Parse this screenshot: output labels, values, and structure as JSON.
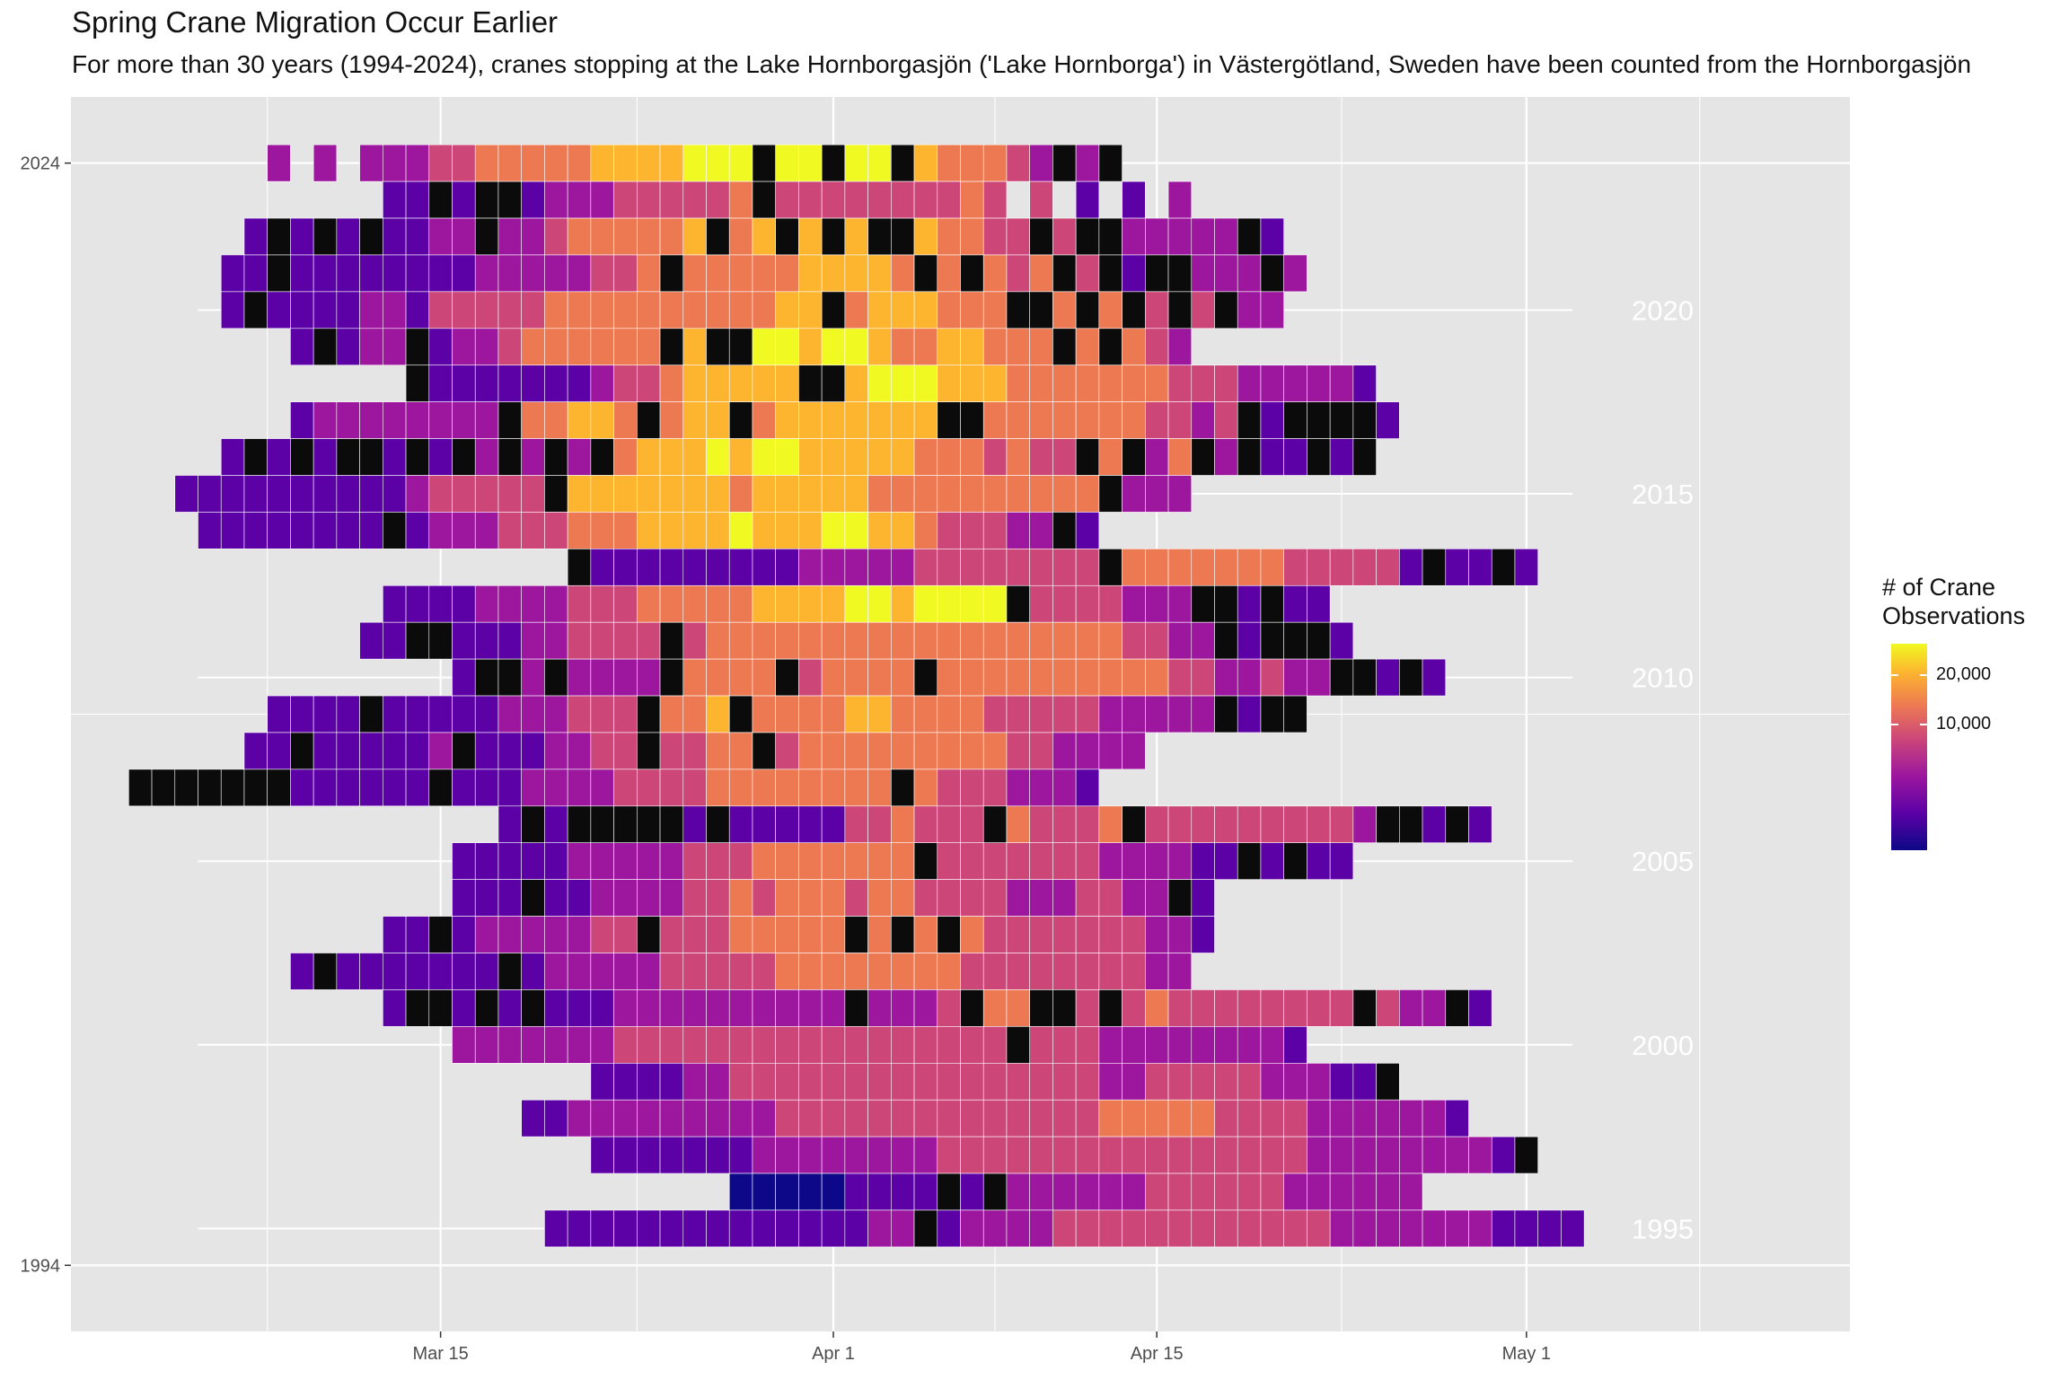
{
  "chart_data": {
    "type": "heatmap",
    "title": "Spring Crane Migration Occur Earlier",
    "subtitle": "For more than 30 years (1994-2024), cranes stopping at the Lake Hornborgasjön ('Lake Hornborga') in Västergötland, Sweden have been counted from the Hornborgasjön",
    "xlabel": "",
    "ylabel": "",
    "x_axis": {
      "type": "date",
      "ticks": [
        "Mar 15",
        "Apr 1",
        "Apr 15",
        "May 1"
      ],
      "tick_days": [
        74,
        91,
        105,
        121
      ],
      "range_days": [
        58,
        135
      ]
    },
    "y_axis": {
      "ticks": [
        "1994",
        "2024"
      ],
      "range": [
        1992.2,
        2025.8
      ]
    },
    "year_annotations": [
      "1995",
      "2000",
      "2005",
      "2010",
      "2015",
      "2020"
    ],
    "legend": {
      "title_line1": "# of Crane",
      "title_line2": "Observations",
      "labels": [
        "20,000",
        "10,000"
      ],
      "label_levels": [
        0.85,
        0.61
      ],
      "placement": "right"
    },
    "color_scale": [
      "#0d0887",
      "#5c01a6",
      "#9c179e",
      "#cc4778",
      "#ed7953",
      "#fdb42f",
      "#f0f921"
    ],
    "missing_color": "#0b0b0b",
    "series": [
      {
        "year": 2024,
        "start_day": 67,
        "end_day": 104,
        "levels": "2_2_22233444445555666x66x66x544432x2x",
        "note": "gaps"
      },
      {
        "year": 2023,
        "start_day": 72,
        "end_day": 106,
        "levels": "11x1xx1222333334x3333333343_3_1_1_2"
      },
      {
        "year": 2022,
        "start_day": 66,
        "end_day": 108,
        "levels": "1x1x1x1122x223444445x45x5x5xx54433x3xx22222x1"
      },
      {
        "year": 2021,
        "start_day": 65,
        "end_day": 107,
        "levels": "11x1111111122222334x4444455554x4x434x3x1xx222x2"
      },
      {
        "year": 2020,
        "start_day": 65,
        "end_day": 107,
        "levels": "1x111122133333444444444455x4555444xx4x4x3x3x22"
      },
      {
        "year": 2019,
        "start_day": 68,
        "end_day": 104,
        "levels": "1x122x1223444444x5xx6656654455444x4x432"
      },
      {
        "year": 2018,
        "start_day": 73,
        "end_day": 106,
        "levels": "x1111111233455555xx56665554444444333222221"
      },
      {
        "year": 2017,
        "start_day": 68,
        "end_day": 114,
        "levels": "122222222x44554x455x45555555xx44444443323x1xxxx1"
      },
      {
        "year": 2016,
        "start_day": 65,
        "end_day": 110,
        "levels": "1x1x1xx1x1x2x2x2x45556566555554443433x4x24x2x11x1x"
      },
      {
        "year": 2015,
        "start_day": 63,
        "end_day": 104,
        "levels": "1111111111233333x55555554555554444444444x222"
      },
      {
        "year": 2014,
        "start_day": 64,
        "end_day": 104,
        "levels": "11111111x1222333444555565556655433322x1"
      },
      {
        "year": 2013,
        "start_day": 80,
        "end_day": 115,
        "levels": "x1111111112222233333333x4444444333331x11x1"
      },
      {
        "year": 2012,
        "start_day": 72,
        "end_day": 111,
        "levels": "111122223334444455556656666x3333222xx1x11"
      },
      {
        "year": 2011,
        "start_day": 71,
        "end_day": 111,
        "levels": "11xx111223333x34444444444444444443322x1xxx1"
      },
      {
        "year": 2010,
        "start_day": 75,
        "end_day": 111,
        "levels": "1xx2x2222x4444x34444x44444444443322322xx1x1"
      },
      {
        "year": 2009,
        "start_day": 67,
        "end_day": 109,
        "levels": "1111x11111222333x445x44445544443333322222x1xx"
      },
      {
        "year": 2008,
        "start_day": 66,
        "end_day": 104,
        "levels": "11x111112x1112233x3344x3444444444332222"
      },
      {
        "year": 2007,
        "start_day": 61,
        "end_day": 103,
        "levels": "xxxxxxx111111x1112222333344444444x43332221"
      },
      {
        "year": 2006,
        "start_day": 77,
        "end_day": 112,
        "levels": "1x1xxxxx1x11111334333x43334x3333333332xx1x1"
      },
      {
        "year": 2005,
        "start_day": 75,
        "end_day": 110,
        "levels": "11111222223334444444x3333333222211x1x11"
      },
      {
        "year": 2004,
        "start_day": 75,
        "end_day": 107,
        "levels": "111x112222334344434433332223322x1"
      },
      {
        "year": 2003,
        "start_day": 72,
        "end_day": 106,
        "levels": "11x12222233x33344444x4x4x43333333221"
      },
      {
        "year": 2002,
        "start_day": 68,
        "end_day": 106,
        "levels": "1x1111111x12222233333444444443333333322"
      },
      {
        "year": 2001,
        "start_day": 72,
        "end_day": 112,
        "levels": "1xx1x1x1112222222222x2223x44xx3x3433333333x322x1"
      },
      {
        "year": 2000,
        "start_day": 75,
        "end_day": 106,
        "levels": "222222233333333333333333x333222222221"
      },
      {
        "year": 1999,
        "start_day": 81,
        "end_day": 111,
        "levels": "1111223333333333333333223333322211x"
      },
      {
        "year": 1998,
        "start_day": 78,
        "end_day": 112,
        "levels": "11222222222333333333333334444433332222221"
      },
      {
        "year": 1997,
        "start_day": 81,
        "end_day": 113,
        "levels": "1111111222222223333333333333333222222221x"
      },
      {
        "year": 1996,
        "start_day": 87,
        "end_day": 113,
        "levels": "000001111x1x222222333333222222"
      },
      {
        "year": 1995,
        "start_day": 79,
        "end_day": 115,
        "levels": "1111111111111122x1222233333333333322222221111"
      }
    ]
  }
}
